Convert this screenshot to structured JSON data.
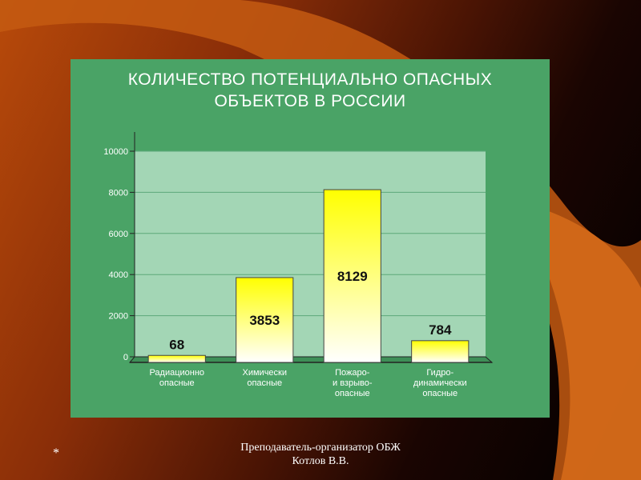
{
  "slide": {
    "footer_line1": "Преподаватель-организатор ОБЖ",
    "footer_line2": "Котлов В.В.",
    "marker": "*"
  },
  "colors": {
    "panel": "#4aa366",
    "plot_area": "#a3d6b5",
    "bar_top": "#ffff00",
    "bar_bottom": "#ffffff"
  },
  "chart_data": {
    "type": "bar",
    "title_line1": "КОЛИЧЕСТВО ПОТЕНЦИАЛЬНО ОПАСНЫХ",
    "title_line2": "ОБЪЕКТОВ В РОССИИ",
    "categories": [
      [
        "Радиационно",
        "опасные"
      ],
      [
        "Химически",
        "опасные"
      ],
      [
        "Пожаро-",
        "и взрыво-",
        "опасные"
      ],
      [
        "Гидро-",
        "динамически",
        "опасные"
      ]
    ],
    "values": [
      68,
      3853,
      8129,
      784
    ],
    "data_labels": [
      "68",
      "3853",
      "8129",
      "784"
    ],
    "yticks": [
      "0",
      "2000",
      "4000",
      "6000",
      "8000",
      "10000"
    ],
    "ylim": [
      0,
      10000
    ],
    "grid": true,
    "legend": "none"
  }
}
